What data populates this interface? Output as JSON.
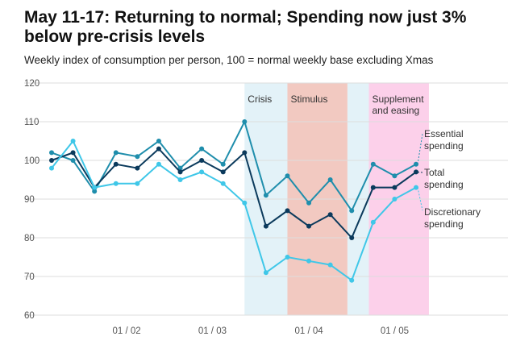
{
  "title": "May 11-17: Returning to normal; Spending now just 3% below pre-crisis levels",
  "subtitle": "Weekly index of consumption per person, 100 = normal weekly base excluding Xmas",
  "chart_data": {
    "type": "line",
    "title": "May 11-17: Returning to normal; Spending now just 3% below pre-crisis levels",
    "subtitle": "Weekly index of consumption per person, 100 = normal weekly base excluding Xmas",
    "xlabel": "",
    "ylabel": "",
    "ylim": [
      60,
      120
    ],
    "yticks": [
      60,
      70,
      80,
      90,
      100,
      110,
      120
    ],
    "x_tick_labels": [
      {
        "week": 3.5,
        "label": "01 / 02"
      },
      {
        "week": 7.5,
        "label": "01 / 03"
      },
      {
        "week": 12,
        "label": "01 / 04"
      },
      {
        "week": 16,
        "label": "01 / 05"
      }
    ],
    "grid": true,
    "bands": [
      {
        "label": "Crisis",
        "start": 9.0,
        "end": 11.0,
        "color": "#e3f2f8"
      },
      {
        "label": "Stimulus",
        "start": 11.0,
        "end": 13.8,
        "color": "#f2c9c1"
      },
      {
        "label": "",
        "start": 13.8,
        "end": 14.8,
        "color": "#e3f2f8"
      },
      {
        "label": "Supplement and easing",
        "label_lines": [
          "Supplement",
          "and easing"
        ],
        "start": 14.8,
        "end": 17.6,
        "color": "#fcd0ea"
      }
    ],
    "weeks": [
      0,
      1,
      2,
      3,
      4,
      5,
      6,
      7,
      8,
      9,
      10,
      11,
      12,
      13,
      14,
      15,
      16,
      17
    ],
    "series": [
      {
        "name": "Essential spending",
        "label_lines": [
          "Essential",
          "spending"
        ],
        "color": "#1f8eac",
        "values": [
          102,
          100,
          92,
          102,
          101,
          105,
          98,
          103,
          99,
          110,
          91,
          96,
          89,
          95,
          87,
          99,
          96,
          99
        ]
      },
      {
        "name": "Total spending",
        "label_lines": [
          "Total",
          "spending"
        ],
        "color": "#0b3a5c",
        "values": [
          100,
          102,
          93,
          99,
          98,
          103,
          97,
          100,
          97,
          102,
          83,
          87,
          83,
          86,
          80,
          93,
          93,
          97
        ]
      },
      {
        "name": "Discretionary spending",
        "label_lines": [
          "Discretionary",
          "spending"
        ],
        "color": "#3fc7e8",
        "values": [
          98,
          105,
          93,
          94,
          94,
          99,
          95,
          97,
          94,
          89,
          71,
          75,
          74,
          73,
          69,
          84,
          90,
          93
        ]
      }
    ]
  }
}
